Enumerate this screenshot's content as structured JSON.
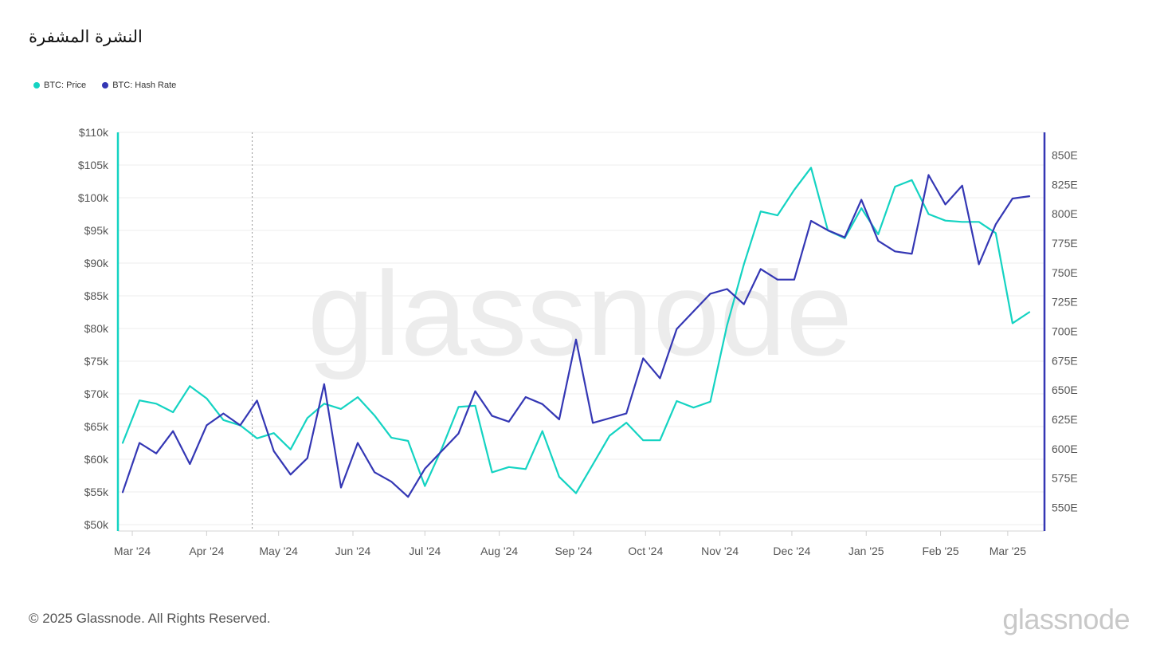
{
  "title": "النشرة المشفرة",
  "footer": "© 2025 Glassnode. All Rights Reserved.",
  "brand": "glassnode",
  "watermark": "glassnode",
  "colors": {
    "price": "#14d3c2",
    "hash": "#3437b4",
    "grid": "#ededed",
    "watermark": "#ececec"
  },
  "legend": [
    {
      "label": "BTC: Price",
      "color": "#14d3c2"
    },
    {
      "label": "BTC: Hash Rate",
      "color": "#3437b4"
    }
  ],
  "chart_data": {
    "type": "line",
    "x_axis": {
      "type": "date",
      "range": [
        "2024-02-26",
        "2025-03-13"
      ],
      "tick_labels": [
        "Mar '24",
        "Apr '24",
        "May '24",
        "Jun '24",
        "Jul '24",
        "Aug '24",
        "Sep '24",
        "Oct '24",
        "Nov '24",
        "Dec '24",
        "Jan '25",
        "Feb '25",
        "Mar '25"
      ],
      "tick_dates": [
        "2024-03-01",
        "2024-04-01",
        "2024-05-01",
        "2024-06-01",
        "2024-07-01",
        "2024-08-01",
        "2024-09-01",
        "2024-10-01",
        "2024-11-01",
        "2024-12-01",
        "2025-01-01",
        "2025-02-01",
        "2025-03-01"
      ]
    },
    "y_left": {
      "range": [
        50000,
        110000
      ],
      "ticks": [
        50000,
        55000,
        60000,
        65000,
        70000,
        75000,
        80000,
        85000,
        90000,
        95000,
        100000,
        105000,
        110000
      ],
      "tick_labels": [
        "$50k",
        "$55k",
        "$60k",
        "$65k",
        "$70k",
        "$75k",
        "$80k",
        "$85k",
        "$90k",
        "$95k",
        "$100k",
        "$105k",
        "$110k"
      ]
    },
    "y_right": {
      "range": [
        530,
        865
      ],
      "ticks": [
        550,
        575,
        600,
        625,
        650,
        675,
        700,
        725,
        750,
        775,
        800,
        825,
        850
      ],
      "tick_labels": [
        "550E",
        "575E",
        "600E",
        "625E",
        "650E",
        "675E",
        "700E",
        "725E",
        "750E",
        "775E",
        "800E",
        "825E",
        "850E"
      ]
    },
    "marker_date": "2024-04-20",
    "series": [
      {
        "name": "BTC: Price",
        "axis": "left",
        "x": [
          "2024-02-26",
          "2024-03-04",
          "2024-03-11",
          "2024-03-18",
          "2024-03-25",
          "2024-04-01",
          "2024-04-08",
          "2024-04-15",
          "2024-04-22",
          "2024-04-29",
          "2024-05-06",
          "2024-05-13",
          "2024-05-20",
          "2024-05-27",
          "2024-06-03",
          "2024-06-10",
          "2024-06-17",
          "2024-06-24",
          "2024-07-01",
          "2024-07-08",
          "2024-07-15",
          "2024-07-22",
          "2024-07-29",
          "2024-08-05",
          "2024-08-12",
          "2024-08-19",
          "2024-08-26",
          "2024-09-02",
          "2024-09-09",
          "2024-09-16",
          "2024-09-23",
          "2024-09-30",
          "2024-10-07",
          "2024-10-14",
          "2024-10-21",
          "2024-10-28",
          "2024-11-04",
          "2024-11-11",
          "2024-11-18",
          "2024-11-25",
          "2024-12-02",
          "2024-12-09",
          "2024-12-16",
          "2024-12-23",
          "2024-12-30",
          "2025-01-06",
          "2025-01-13",
          "2025-01-20",
          "2025-01-27",
          "2025-02-03",
          "2025-02-10",
          "2025-02-17",
          "2025-02-24",
          "2025-03-03",
          "2025-03-10"
        ],
        "values": [
          62500,
          69000,
          68500,
          67200,
          71200,
          69300,
          66000,
          65200,
          63200,
          64000,
          61500,
          66300,
          68500,
          67700,
          69500,
          66700,
          63300,
          62800,
          55900,
          61600,
          68000,
          68200,
          58000,
          58800,
          58500,
          64300,
          57300,
          54800,
          59200,
          63600,
          65600,
          62900,
          62900,
          68900,
          67900,
          68800,
          80500,
          89800,
          97900,
          97300,
          101200,
          104600,
          95000,
          93800,
          98400,
          94400,
          101700,
          102700,
          97500,
          96500,
          96300,
          96300,
          94600,
          80800,
          82500
        ]
      },
      {
        "name": "BTC: Hash Rate",
        "axis": "right",
        "x": [
          "2024-02-26",
          "2024-03-04",
          "2024-03-11",
          "2024-03-18",
          "2024-03-25",
          "2024-04-01",
          "2024-04-08",
          "2024-04-15",
          "2024-04-22",
          "2024-04-29",
          "2024-05-06",
          "2024-05-13",
          "2024-05-20",
          "2024-05-27",
          "2024-06-03",
          "2024-06-10",
          "2024-06-17",
          "2024-06-24",
          "2024-07-01",
          "2024-07-08",
          "2024-07-15",
          "2024-07-22",
          "2024-07-29",
          "2024-08-05",
          "2024-08-12",
          "2024-08-19",
          "2024-08-26",
          "2024-09-02",
          "2024-09-09",
          "2024-09-16",
          "2024-09-23",
          "2024-09-30",
          "2024-10-07",
          "2024-10-14",
          "2024-10-21",
          "2024-10-28",
          "2024-11-04",
          "2024-11-11",
          "2024-11-18",
          "2024-11-25",
          "2024-12-02",
          "2024-12-09",
          "2024-12-16",
          "2024-12-23",
          "2024-12-30",
          "2025-01-06",
          "2025-01-13",
          "2025-01-20",
          "2025-01-27",
          "2025-02-03",
          "2025-02-10",
          "2025-02-17",
          "2025-02-24",
          "2025-03-03",
          "2025-03-10"
        ],
        "values": [
          563,
          605,
          596,
          615,
          587,
          620,
          630,
          620,
          641,
          598,
          578,
          592,
          655,
          567,
          605,
          580,
          572,
          559,
          583,
          598,
          613,
          649,
          628,
          623,
          644,
          638,
          625,
          693,
          622,
          626,
          630,
          677,
          660,
          702,
          717,
          732,
          736,
          723,
          753,
          744,
          744,
          794,
          786,
          780,
          812,
          777,
          768,
          766,
          833,
          808,
          824,
          757,
          791,
          813,
          815
        ]
      }
    ]
  }
}
